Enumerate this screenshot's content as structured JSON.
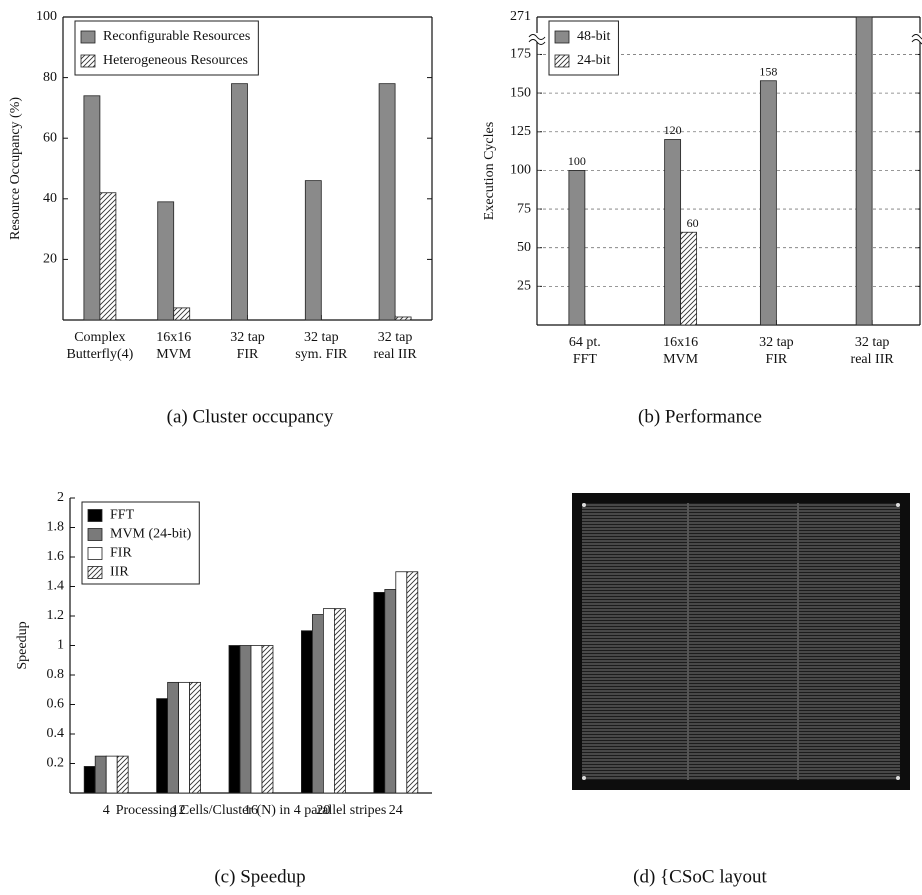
{
  "chart_data": [
    {
      "type": "bar",
      "caption": "(a) Cluster occupancy",
      "ylabel": "Resource Occupancy (%)",
      "categories": [
        "Complex\nButterfly(4)",
        "16x16\nMVM",
        "32 tap\nFIR",
        "32 tap\nsym. FIR",
        "32 tap\nreal IIR"
      ],
      "series": [
        {
          "name": "Reconfigurable Resources",
          "color": "#8a8a8a",
          "values": [
            74,
            39,
            78,
            46,
            78
          ]
        },
        {
          "name": "Heterogeneous Resources",
          "color": "#ffffff",
          "hatch": true,
          "values": [
            42,
            4,
            0,
            0,
            1
          ]
        }
      ],
      "ylim": [
        0,
        100
      ],
      "yticks": [
        20,
        40,
        60,
        80,
        100
      ],
      "grid": false,
      "frame": true,
      "legend": "upper left"
    },
    {
      "type": "bar",
      "caption": "(b) Performance",
      "ylabel": "Execution Cycles",
      "categories": [
        "64 pt.\nFFT",
        "16x16\nMVM",
        "32 tap\nFIR",
        "32 tap\nreal IIR"
      ],
      "series": [
        {
          "name": "48-bit",
          "color": "#8a8a8a",
          "values": [
            100,
            120,
            158,
            271
          ],
          "value_labels": [
            "100",
            "120",
            "158",
            null
          ]
        },
        {
          "name": "24-bit",
          "color": "#ffffff",
          "hatch": true,
          "values": [
            null,
            60,
            null,
            null
          ],
          "value_labels": [
            null,
            "60",
            null,
            null
          ]
        }
      ],
      "ylim": [
        0,
        271
      ],
      "y_break": 185,
      "yticks": [
        25,
        50,
        75,
        100,
        125,
        150,
        175,
        271
      ],
      "grid": true,
      "frame": true,
      "legend": "upper left"
    },
    {
      "type": "bar",
      "caption": "(c) Speedup",
      "ylabel": "Speedup",
      "xlabel": "Processing Cells/Cluster (N) in 4 parallel stripes",
      "categories": [
        "4",
        "12",
        "16",
        "20",
        "24"
      ],
      "series": [
        {
          "name": "FFT",
          "color": "#000000",
          "values": [
            0.18,
            0.64,
            1,
            1.1,
            1.36
          ]
        },
        {
          "name": "MVM (24-bit)",
          "color": "#7a7a7a",
          "values": [
            0.25,
            0.75,
            1,
            1.21,
            1.38
          ]
        },
        {
          "name": "FIR",
          "color": "#ffffff",
          "values": [
            0.25,
            0.75,
            1,
            1.25,
            1.5
          ]
        },
        {
          "name": "IIR",
          "color": "#ffffff",
          "hatch": true,
          "values": [
            0.25,
            0.75,
            1,
            1.25,
            1.5
          ]
        }
      ],
      "ylim": [
        0,
        2
      ],
      "yticks": [
        0.2,
        0.4,
        0.6,
        0.8,
        1,
        1.2,
        1.4,
        1.6,
        1.8,
        2
      ],
      "grid": false,
      "frame": false,
      "legend": "upper left"
    }
  ],
  "panel_d": {
    "caption": "(d) {CSoC layout"
  }
}
